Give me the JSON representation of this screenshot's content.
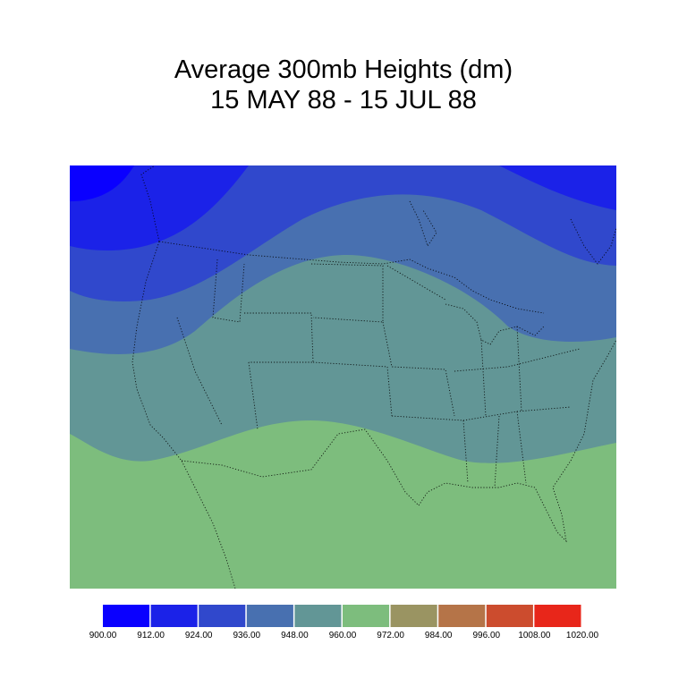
{
  "title_line1": "Average 300mb Heights (dm)",
  "title_line2": "15 MAY 88 - 15 JUL 88",
  "legend": {
    "levels": [
      "900.00",
      "912.00",
      "924.00",
      "936.00",
      "948.00",
      "960.00",
      "972.00",
      "984.00",
      "996.00",
      "1008.00",
      "1020.00"
    ],
    "colors": [
      "#0a00ff",
      "#1b22e8",
      "#3048cc",
      "#4870b0",
      "#629696",
      "#7dbd7d",
      "#9a9462",
      "#b57448",
      "#cc4c2e",
      "#e8261a"
    ]
  },
  "map": {
    "region": "United States / North America",
    "projection": "conic",
    "band_colors": {
      "900_912": "#0a00ff",
      "912_924": "#1b22e8",
      "924_936": "#3048cc",
      "936_948": "#4870b0",
      "948_960": "#629696",
      "960_972": "#7dbd7d"
    },
    "boundary_color": "#000000"
  }
}
